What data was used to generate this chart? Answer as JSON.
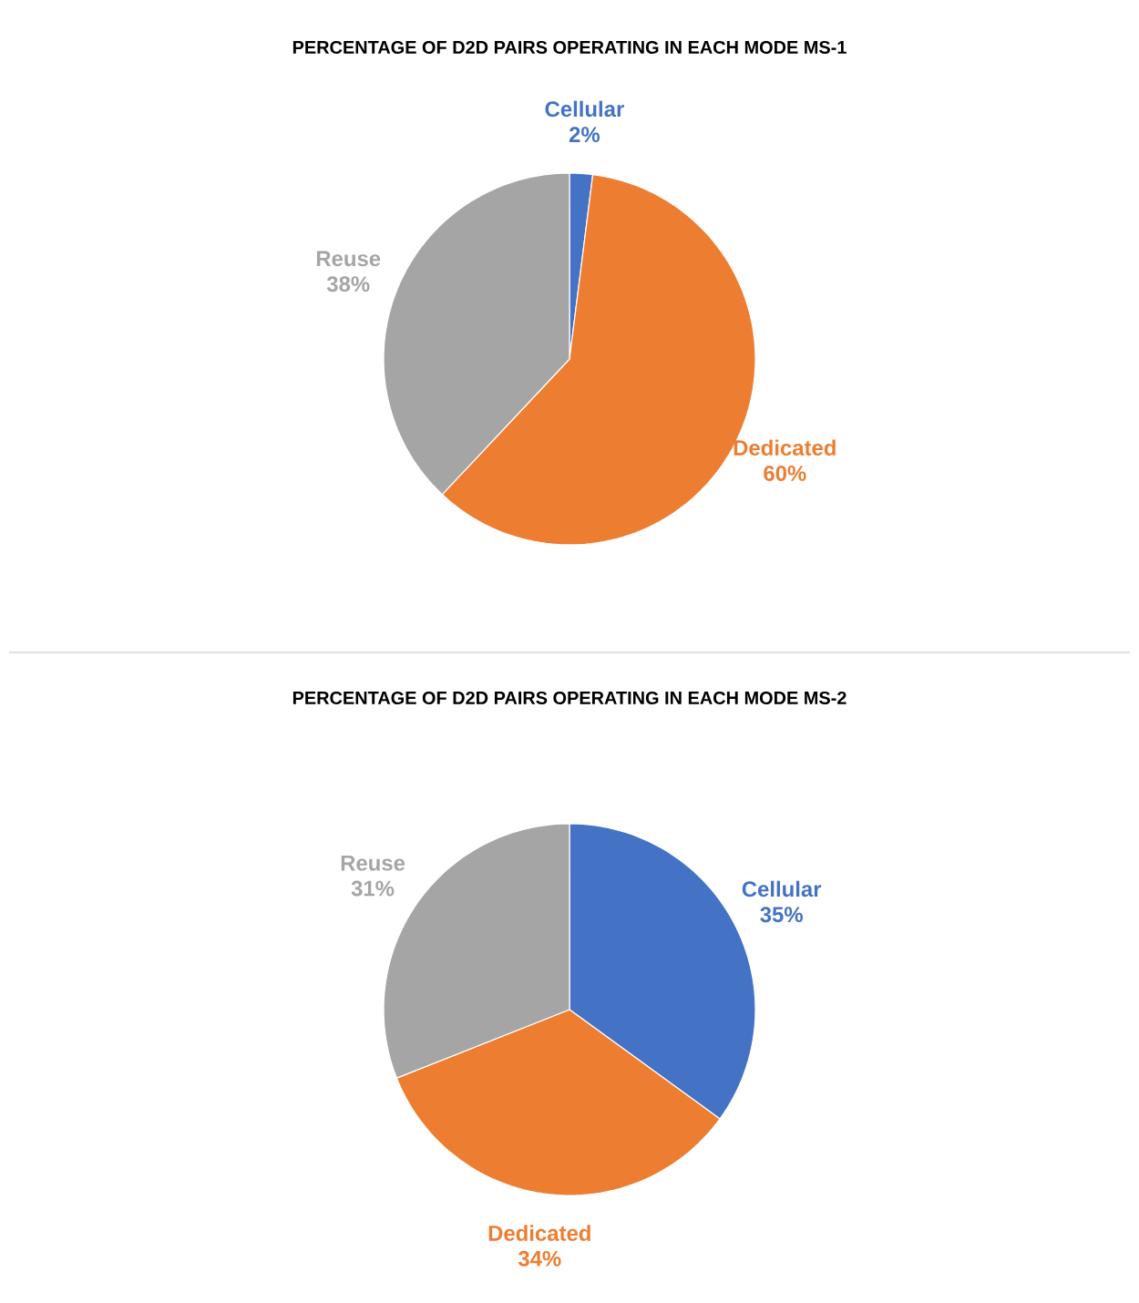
{
  "chart_data": [
    {
      "type": "pie",
      "title": "PERCENTAGE OF D2D PAIRS OPERATING IN EACH MODE MS-1",
      "categories": [
        "Cellular",
        "Dedicated",
        "Reuse"
      ],
      "values": [
        2,
        60,
        38
      ],
      "value_labels": [
        "2%",
        "60%",
        "38%"
      ],
      "colors": [
        "#4472c4",
        "#ed7d31",
        "#a5a5a5"
      ]
    },
    {
      "type": "pie",
      "title": "PERCENTAGE OF D2D PAIRS OPERATING IN EACH MODE  MS-2",
      "categories": [
        "Cellular",
        "Dedicated",
        "Reuse"
      ],
      "values": [
        35,
        34,
        31
      ],
      "value_labels": [
        "35%",
        "34%",
        "31%"
      ],
      "colors": [
        "#4472c4",
        "#ed7d31",
        "#a5a5a5"
      ]
    }
  ]
}
